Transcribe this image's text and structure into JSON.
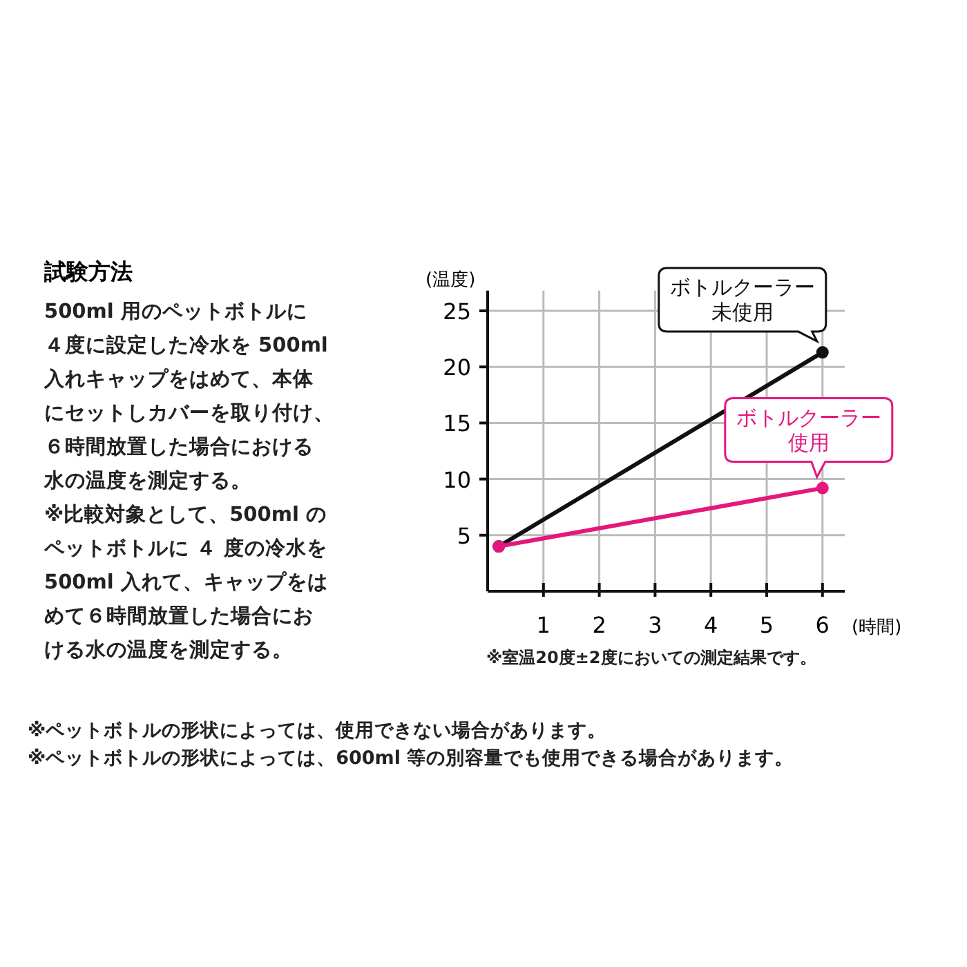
{
  "chart_data": {
    "type": "line",
    "title": "試験方法",
    "xlabel": "(時間)",
    "ylabel": "(温度)",
    "xlim": [
      0,
      6.4
    ],
    "ylim": [
      0,
      26.8
    ],
    "xticks": [
      1,
      2,
      3,
      4,
      5,
      6
    ],
    "yticks": [
      5,
      10,
      15,
      20,
      25
    ],
    "grid": true,
    "marker": "circle",
    "line_style": "solid",
    "x": [
      0.2,
      6
    ],
    "series": [
      {
        "name": "ボトルクーラー未使用",
        "color": "#111111",
        "values": [
          4,
          21.3
        ]
      },
      {
        "name": "ボトルクーラー使用",
        "color": "#e5177e",
        "values": [
          4,
          9.2
        ]
      }
    ],
    "annotations": [
      "500ml 用のペットボトルに",
      "４度に設定した冷水を 500ml",
      "入れキャップをはめて、本体",
      "にセットしカバーを取り付け、",
      "６時間放置した場合における",
      "水の温度を測定する。",
      "※比較対象として、500ml の",
      "ペットボトルに ４ 度の冷水を",
      "500ml 入れて、キャップをは",
      "めて６時間放置した場合にお",
      "ける水の温度を測定する。",
      "※室温20度±2度においての測定結果です。",
      "※ペットボトルの形状によっては、使用できない場合があります。",
      "※ペットボトルの形状によっては、600ml 等の別容量でも使用できる場合があります。"
    ]
  }
}
